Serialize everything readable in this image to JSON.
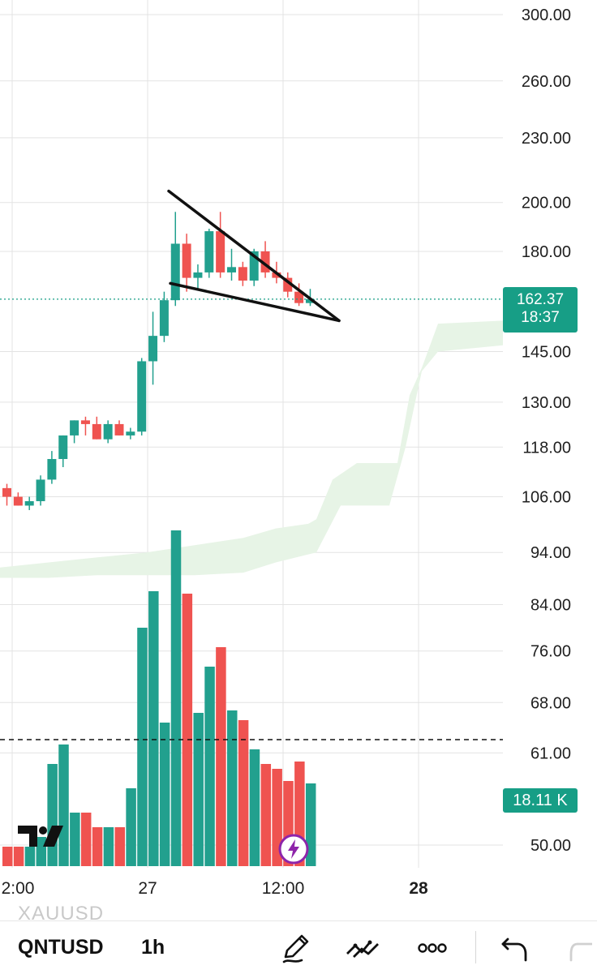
{
  "chart_data": {
    "type": "candlestick",
    "symbol": "QNTUSD",
    "interval": "1h",
    "y_scale": "log",
    "y_ticks": [
      "300.00",
      "260.00",
      "230.00",
      "200.00",
      "180.00",
      "145.00",
      "130.00",
      "118.00",
      "106.00",
      "94.00",
      "84.00",
      "76.00",
      "68.00",
      "61.00",
      "50.00"
    ],
    "x_ticks": [
      {
        "label": "2:00",
        "bold": false
      },
      {
        "label": "27",
        "bold": false
      },
      {
        "label": "12:00",
        "bold": false
      },
      {
        "label": "28",
        "bold": true
      }
    ],
    "candles": [
      {
        "o": 108,
        "h": 109,
        "l": 104,
        "c": 106
      },
      {
        "o": 106,
        "h": 107,
        "l": 104,
        "c": 104
      },
      {
        "o": 104,
        "h": 106,
        "l": 103,
        "c": 105
      },
      {
        "o": 105,
        "h": 111,
        "l": 104,
        "c": 110
      },
      {
        "o": 110,
        "h": 117,
        "l": 109,
        "c": 115
      },
      {
        "o": 115,
        "h": 121,
        "l": 113,
        "c": 121
      },
      {
        "o": 121,
        "h": 125,
        "l": 119,
        "c": 125
      },
      {
        "o": 125,
        "h": 126,
        "l": 121,
        "c": 124
      },
      {
        "o": 124,
        "h": 126,
        "l": 120,
        "c": 120
      },
      {
        "o": 120,
        "h": 125,
        "l": 119,
        "c": 124
      },
      {
        "o": 124,
        "h": 125,
        "l": 121,
        "c": 121
      },
      {
        "o": 121,
        "h": 123,
        "l": 120,
        "c": 122
      },
      {
        "o": 122,
        "h": 143,
        "l": 121,
        "c": 142
      },
      {
        "o": 142,
        "h": 158,
        "l": 135,
        "c": 150
      },
      {
        "o": 150,
        "h": 165,
        "l": 148,
        "c": 162
      },
      {
        "o": 162,
        "h": 196,
        "l": 160,
        "c": 183
      },
      {
        "o": 183,
        "h": 187,
        "l": 165,
        "c": 170
      },
      {
        "o": 170,
        "h": 175,
        "l": 166,
        "c": 172
      },
      {
        "o": 172,
        "h": 189,
        "l": 170,
        "c": 188
      },
      {
        "o": 188,
        "h": 196,
        "l": 170,
        "c": 172
      },
      {
        "o": 172,
        "h": 181,
        "l": 169,
        "c": 174
      },
      {
        "o": 174,
        "h": 176,
        "l": 167,
        "c": 169
      },
      {
        "o": 169,
        "h": 181,
        "l": 167,
        "c": 180
      },
      {
        "o": 180,
        "h": 184,
        "l": 170,
        "c": 172
      },
      {
        "o": 172,
        "h": 176,
        "l": 168,
        "c": 170
      },
      {
        "o": 170,
        "h": 172,
        "l": 163,
        "c": 165
      },
      {
        "o": 165,
        "h": 168,
        "l": 160,
        "c": 161
      },
      {
        "o": 161,
        "h": 166,
        "l": 160,
        "c": 162.37
      }
    ],
    "volume_bars": [
      0.08,
      0.08,
      0.08,
      0.12,
      0.42,
      0.5,
      0.22,
      0.22,
      0.16,
      0.16,
      0.16,
      0.32,
      0.98,
      1.13,
      0.59,
      1.38,
      1.12,
      0.63,
      0.82,
      0.9,
      0.64,
      0.6,
      0.48,
      0.42,
      0.4,
      0.35,
      0.43,
      0.34
    ],
    "last_price": "162.37",
    "countdown": "18:37",
    "volume_label": "18.11 K",
    "colors": {
      "up": "#22a08e",
      "down": "#ef5350",
      "cloud": "#e7f4e6",
      "price_tag": "#179e86",
      "grid": "#e3e3e3"
    }
  },
  "toolbar": {
    "symbol": "QNTUSD",
    "interval": "1h",
    "ghost_symbol": "XAUUSD",
    "icons": [
      "pencil-icon",
      "drawing-tools-icon",
      "more-dots-icon",
      "undo-icon"
    ]
  }
}
